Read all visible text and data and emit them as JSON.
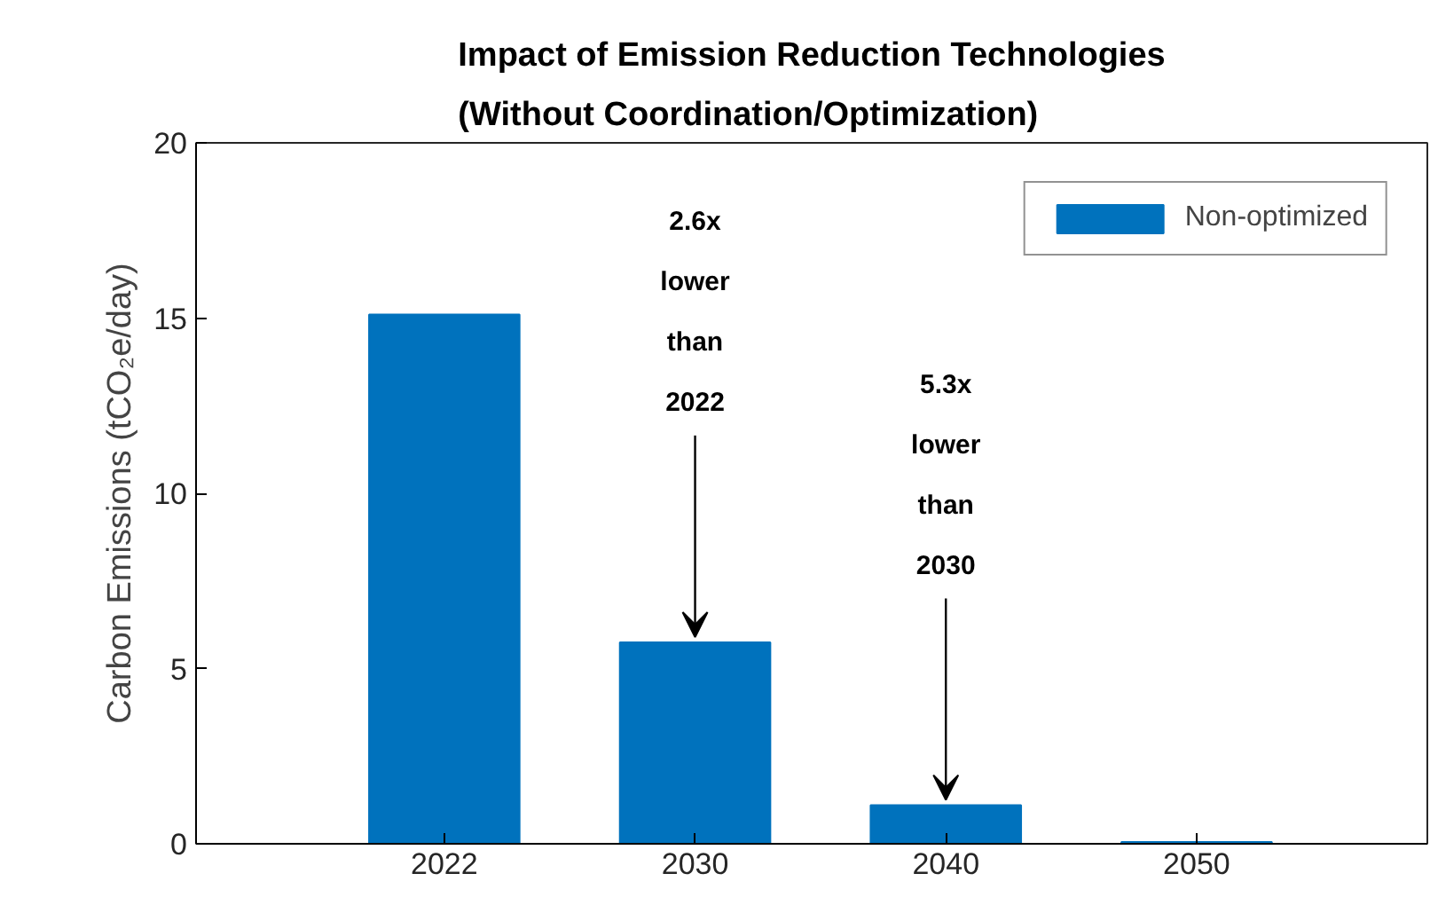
{
  "chart_data": {
    "type": "bar",
    "title": "Impact of Emission Reduction Technologies\n(Without Coordination/Optimization)",
    "ylabel": "Carbon Emissions (tCO₂e/day)",
    "categories": [
      "2022",
      "2030",
      "2040",
      "2050"
    ],
    "series": [
      {
        "name": "Non-optimized",
        "color": "#0072bd",
        "values": [
          15.1,
          5.75,
          1.1,
          0.05
        ]
      }
    ],
    "ylim": [
      0,
      20
    ],
    "yticks": [
      0,
      5,
      10,
      15,
      20
    ],
    "legend": "top right",
    "grid": false,
    "annotations": [
      {
        "text": "2.6x\nlower\nthan\n2022",
        "x": "2030",
        "y": 5.75
      },
      {
        "text": "5.3x\nlower\nthan\n2030",
        "x": "2040",
        "y": 1.1
      }
    ]
  }
}
